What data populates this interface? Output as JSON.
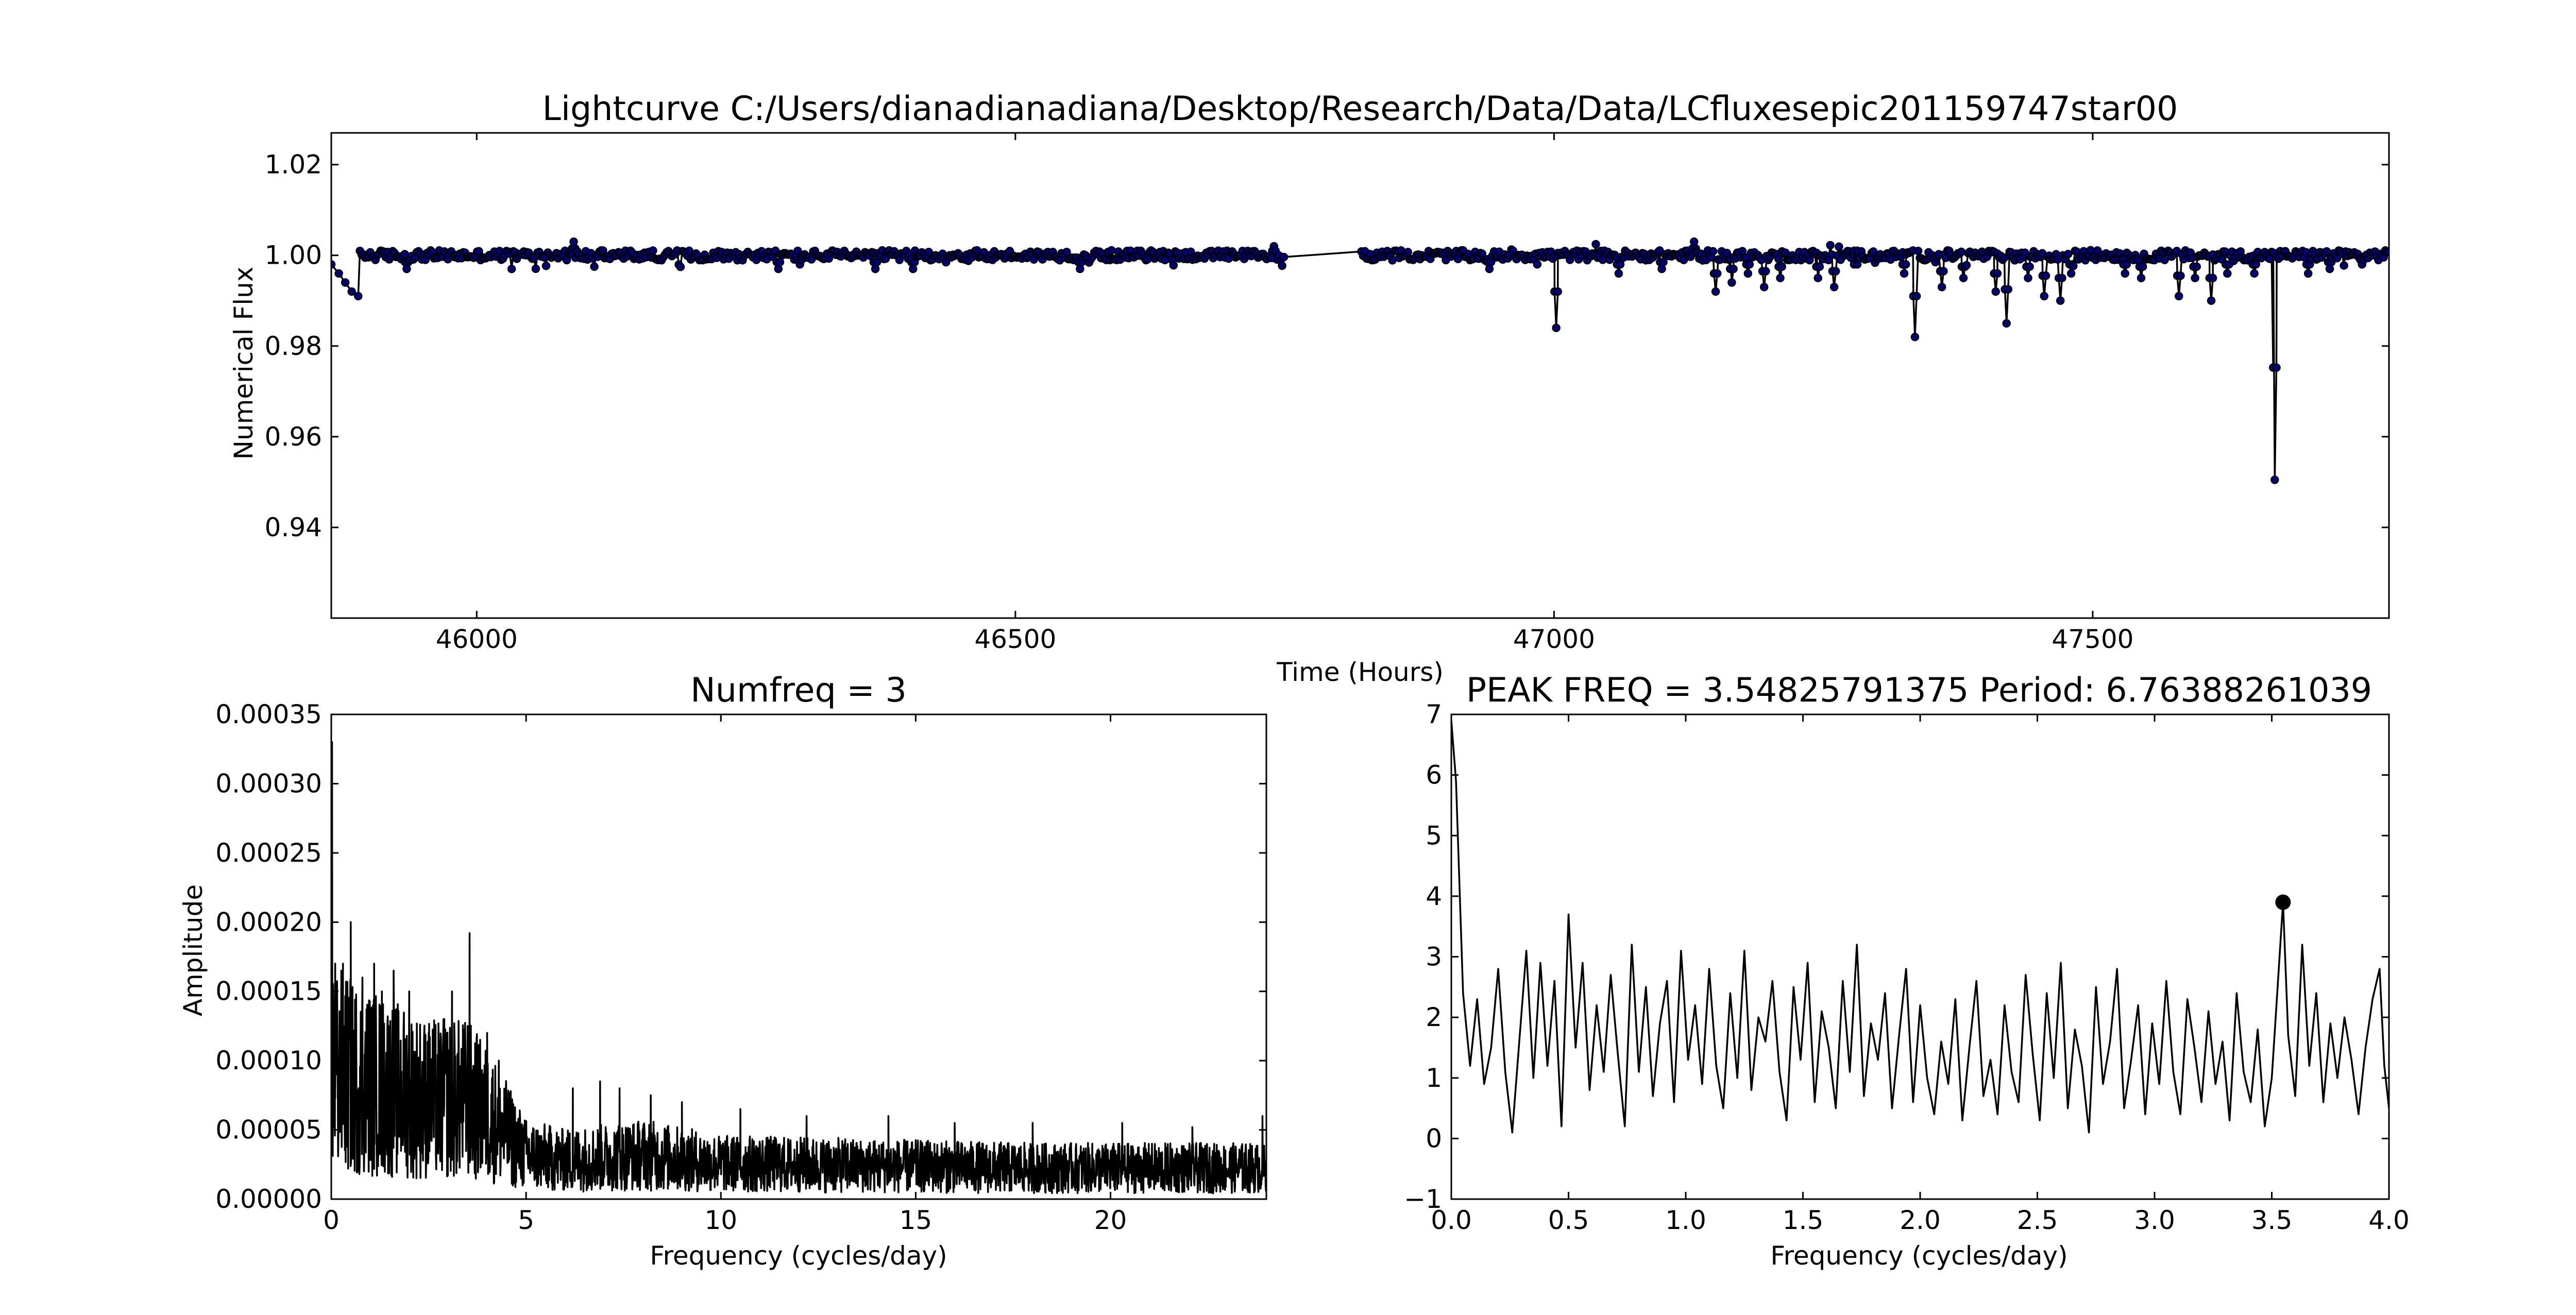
{
  "chart_data": [
    {
      "type": "scatter",
      "title": "Lightcurve C:/Users/dianadianadiana/Desktop/Research/Data/Data/LCfluxesepic201159747star00",
      "xlabel": "Time (Hours)",
      "ylabel": "Numerical Flux",
      "xlim": [
        45865,
        47775
      ],
      "ylim": [
        0.92,
        1.027
      ],
      "x_ticks": [
        46000,
        46500,
        47000,
        47500
      ],
      "x_tick_labels": [
        "46000",
        "46500",
        "47000",
        "47500"
      ],
      "y_ticks": [
        0.94,
        0.96,
        0.98,
        1.0,
        1.02
      ],
      "y_tick_labels": [
        "0.94",
        "0.96",
        "0.98",
        "1.00",
        "1.02"
      ],
      "grid": false,
      "legend": "none",
      "point_color": "#000080",
      "gap": [
        46750,
        46820
      ],
      "baseline": 1.0,
      "start_dip": {
        "x": [
          45865,
          45872,
          45878,
          45884,
          45890
        ],
        "y": [
          0.998,
          0.996,
          0.994,
          0.992,
          0.991
        ]
      },
      "dips": [
        {
          "x": 45935,
          "y": 0.997
        },
        {
          "x": 46280,
          "y": 0.997
        },
        {
          "x": 46300,
          "y": 0.998
        },
        {
          "x": 46370,
          "y": 0.997
        },
        {
          "x": 46405,
          "y": 0.997
        },
        {
          "x": 46560,
          "y": 0.997
        },
        {
          "x": 46940,
          "y": 0.997
        },
        {
          "x": 47002,
          "y": 0.984
        },
        {
          "x": 47060,
          "y": 0.996
        },
        {
          "x": 47100,
          "y": 0.997
        },
        {
          "x": 47150,
          "y": 0.992
        },
        {
          "x": 47165,
          "y": 0.994
        },
        {
          "x": 47180,
          "y": 0.996
        },
        {
          "x": 47195,
          "y": 0.993
        },
        {
          "x": 47210,
          "y": 0.995
        },
        {
          "x": 47245,
          "y": 0.995
        },
        {
          "x": 47260,
          "y": 0.993
        },
        {
          "x": 47280,
          "y": 0.996
        },
        {
          "x": 47325,
          "y": 0.996
        },
        {
          "x": 47335,
          "y": 0.982
        },
        {
          "x": 47360,
          "y": 0.993
        },
        {
          "x": 47380,
          "y": 0.995
        },
        {
          "x": 47410,
          "y": 0.992
        },
        {
          "x": 47420,
          "y": 0.985
        },
        {
          "x": 47440,
          "y": 0.995
        },
        {
          "x": 47455,
          "y": 0.991
        },
        {
          "x": 47470,
          "y": 0.99
        },
        {
          "x": 47480,
          "y": 0.996
        },
        {
          "x": 47530,
          "y": 0.996
        },
        {
          "x": 47545,
          "y": 0.995
        },
        {
          "x": 47580,
          "y": 0.991
        },
        {
          "x": 47595,
          "y": 0.995
        },
        {
          "x": 47610,
          "y": 0.99
        },
        {
          "x": 47625,
          "y": 0.996
        },
        {
          "x": 47650,
          "y": 0.996
        },
        {
          "x": 47669,
          "y": 0.9505
        },
        {
          "x": 47700,
          "y": 0.996
        },
        {
          "x": 47720,
          "y": 0.997
        },
        {
          "x": 47750,
          "y": 0.998
        }
      ],
      "spikes": [
        {
          "x": 46090,
          "y": 1.003
        },
        {
          "x": 46740,
          "y": 1.002
        },
        {
          "x": 47130,
          "y": 1.003
        },
        {
          "x": 47280,
          "y": 1.002
        }
      ]
    },
    {
      "type": "line",
      "title": "Numfreq = 3",
      "xlabel": "Frequency (cycles/day)",
      "ylabel": "Amplitude",
      "xlim": [
        0,
        24
      ],
      "ylim": [
        0,
        0.00035
      ],
      "x_ticks": [
        0,
        5,
        10,
        15,
        20
      ],
      "x_tick_labels": [
        "0",
        "5",
        "10",
        "15",
        "20"
      ],
      "y_ticks": [
        0,
        5e-05,
        0.0001,
        0.00015,
        0.0002,
        0.00025,
        0.0003,
        0.00035
      ],
      "y_tick_labels": [
        "0.00000",
        "0.00005",
        "0.00010",
        "0.00015",
        "0.00020",
        "0.00025",
        "0.00030",
        "0.00035"
      ],
      "grid": false,
      "legend": "none",
      "envelope": [
        {
          "x": 0,
          "y": 0.00012
        },
        {
          "x": 0.5,
          "y": 0.00011
        },
        {
          "x": 1.5,
          "y": 0.0001
        },
        {
          "x": 2.5,
          "y": 9e-05
        },
        {
          "x": 3.5,
          "y": 9e-05
        },
        {
          "x": 4.2,
          "y": 7e-05
        },
        {
          "x": 5,
          "y": 4e-05
        },
        {
          "x": 6,
          "y": 3.5e-05
        },
        {
          "x": 8,
          "y": 4e-05
        },
        {
          "x": 10,
          "y": 3.2e-05
        },
        {
          "x": 14,
          "y": 3e-05
        },
        {
          "x": 18,
          "y": 2.8e-05
        },
        {
          "x": 24,
          "y": 2.8e-05
        }
      ],
      "peaks": [
        {
          "x": 0.02,
          "y": 0.00033
        },
        {
          "x": 0.1,
          "y": 0.00017
        },
        {
          "x": 0.3,
          "y": 0.00017
        },
        {
          "x": 0.5,
          "y": 0.0002
        },
        {
          "x": 0.8,
          "y": 0.00016
        },
        {
          "x": 1.1,
          "y": 0.00017
        },
        {
          "x": 1.3,
          "y": 0.00015
        },
        {
          "x": 1.6,
          "y": 0.000165
        },
        {
          "x": 2.0,
          "y": 0.00015
        },
        {
          "x": 2.5,
          "y": 0.00012
        },
        {
          "x": 2.9,
          "y": 0.00013
        },
        {
          "x": 3.1,
          "y": 0.00015
        },
        {
          "x": 3.5,
          "y": 0.000125
        },
        {
          "x": 3.55,
          "y": 0.000192
        },
        {
          "x": 4.0,
          "y": 0.00012
        },
        {
          "x": 4.3,
          "y": 0.0001
        },
        {
          "x": 6.2,
          "y": 8e-05
        },
        {
          "x": 6.9,
          "y": 8.5e-05
        },
        {
          "x": 7.4,
          "y": 8e-05
        },
        {
          "x": 8.2,
          "y": 7.5e-05
        },
        {
          "x": 9.0,
          "y": 7e-05
        },
        {
          "x": 10.5,
          "y": 6.5e-05
        },
        {
          "x": 12.2,
          "y": 6e-05
        },
        {
          "x": 14.3,
          "y": 6e-05
        },
        {
          "x": 16.0,
          "y": 5.5e-05
        },
        {
          "x": 18.0,
          "y": 5.5e-05
        },
        {
          "x": 20.3,
          "y": 5.5e-05
        },
        {
          "x": 22.1,
          "y": 5.2e-05
        },
        {
          "x": 23.9,
          "y": 6e-05
        }
      ]
    },
    {
      "type": "line",
      "title": "PEAK FREQ = 3.54825791375 Period: 6.76388261039",
      "xlabel": "Frequency (cycles/day)",
      "ylabel": "",
      "xlim": [
        0,
        4
      ],
      "ylim": [
        -1,
        7
      ],
      "x_ticks": [
        0,
        0.5,
        1,
        1.5,
        2,
        2.5,
        3,
        3.5,
        4
      ],
      "x_tick_labels": [
        "0.0",
        "0.5",
        "1.0",
        "1.5",
        "2.0",
        "2.5",
        "3.0",
        "3.5",
        "4.0"
      ],
      "y_ticks": [
        -1,
        0,
        1,
        2,
        3,
        4,
        5,
        6,
        7
      ],
      "y_tick_labels": [
        "−1",
        "0",
        "1",
        "2",
        "3",
        "4",
        "5",
        "6",
        "7"
      ],
      "grid": false,
      "legend": "none",
      "peak_marker": {
        "x": 3.548,
        "y": 3.9
      },
      "x": [
        0.0,
        0.02,
        0.05,
        0.08,
        0.11,
        0.14,
        0.17,
        0.2,
        0.23,
        0.26,
        0.29,
        0.32,
        0.35,
        0.38,
        0.41,
        0.44,
        0.47,
        0.5,
        0.53,
        0.56,
        0.59,
        0.62,
        0.65,
        0.68,
        0.71,
        0.74,
        0.77,
        0.8,
        0.83,
        0.86,
        0.89,
        0.92,
        0.95,
        0.98,
        1.01,
        1.04,
        1.07,
        1.1,
        1.13,
        1.16,
        1.19,
        1.22,
        1.25,
        1.28,
        1.31,
        1.34,
        1.37,
        1.4,
        1.43,
        1.46,
        1.49,
        1.52,
        1.55,
        1.58,
        1.61,
        1.64,
        1.67,
        1.7,
        1.73,
        1.76,
        1.79,
        1.82,
        1.85,
        1.88,
        1.91,
        1.94,
        1.97,
        2.0,
        2.03,
        2.06,
        2.09,
        2.12,
        2.15,
        2.18,
        2.21,
        2.24,
        2.27,
        2.3,
        2.33,
        2.36,
        2.39,
        2.42,
        2.45,
        2.48,
        2.51,
        2.54,
        2.57,
        2.6,
        2.63,
        2.66,
        2.69,
        2.72,
        2.75,
        2.78,
        2.81,
        2.84,
        2.87,
        2.9,
        2.93,
        2.96,
        2.99,
        3.02,
        3.05,
        3.08,
        3.11,
        3.14,
        3.17,
        3.2,
        3.23,
        3.26,
        3.29,
        3.32,
        3.35,
        3.38,
        3.41,
        3.44,
        3.47,
        3.5,
        3.52,
        3.548,
        3.57,
        3.6,
        3.63,
        3.66,
        3.69,
        3.72,
        3.75,
        3.78,
        3.81,
        3.84,
        3.87,
        3.9,
        3.93,
        3.96,
        3.98,
        4.0
      ],
      "y": [
        6.9,
        5.9,
        2.4,
        1.2,
        2.3,
        0.9,
        1.5,
        2.8,
        1.1,
        0.1,
        1.6,
        3.1,
        1.0,
        2.9,
        1.2,
        2.6,
        0.2,
        3.7,
        1.5,
        2.9,
        0.8,
        2.2,
        1.1,
        2.7,
        1.4,
        0.2,
        3.2,
        1.1,
        2.5,
        0.7,
        1.9,
        2.6,
        0.6,
        3.1,
        1.3,
        2.2,
        0.9,
        2.8,
        1.2,
        0.5,
        2.4,
        1.0,
        3.1,
        0.8,
        2.0,
        1.6,
        2.6,
        1.1,
        0.3,
        2.5,
        1.3,
        2.9,
        0.6,
        2.1,
        1.5,
        0.5,
        2.6,
        1.1,
        3.2,
        0.7,
        1.9,
        1.3,
        2.4,
        0.5,
        1.7,
        2.8,
        0.6,
        2.2,
        1.0,
        0.4,
        1.6,
        0.9,
        2.3,
        0.3,
        1.5,
        2.6,
        0.7,
        1.3,
        0.4,
        2.2,
        1.1,
        0.6,
        2.7,
        1.4,
        0.3,
        2.4,
        1.0,
        2.9,
        0.5,
        1.8,
        1.2,
        0.1,
        2.5,
        0.9,
        1.6,
        2.8,
        0.5,
        1.3,
        2.2,
        0.4,
        1.9,
        0.9,
        2.6,
        1.1,
        0.4,
        2.3,
        1.5,
        0.6,
        2.1,
        0.9,
        1.6,
        0.3,
        2.4,
        1.1,
        0.6,
        1.8,
        0.2,
        1.0,
        2.2,
        3.9,
        1.7,
        0.7,
        3.2,
        1.2,
        2.4,
        0.6,
        1.9,
        1.0,
        2.0,
        1.3,
        0.4,
        1.5,
        2.3,
        2.8,
        1.2,
        0.5
      ]
    }
  ]
}
